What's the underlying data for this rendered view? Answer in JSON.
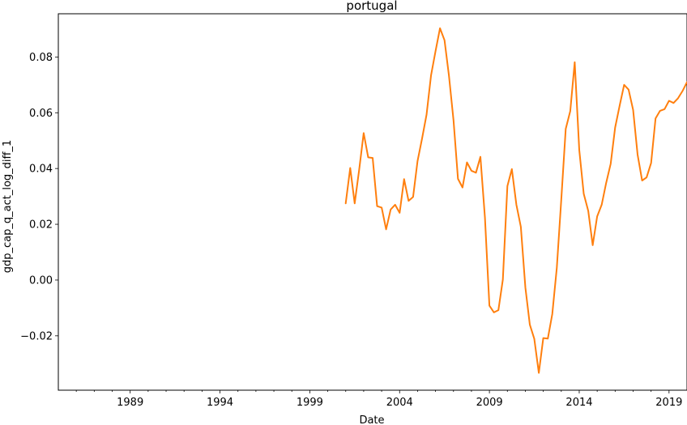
{
  "chart_data": {
    "type": "line",
    "title": "portugal",
    "xlabel": "Date",
    "ylabel": "gdp_cap_q_act_log_diff_1",
    "xlim": [
      1985.0,
      2020.0
    ],
    "ylim": [
      -0.0395,
      0.0955
    ],
    "x_ticks": [
      1989,
      1994,
      1999,
      2004,
      2009,
      2014,
      2019
    ],
    "x_tick_labels": [
      "1989",
      "1994",
      "1999",
      "2004",
      "2009",
      "2014",
      "2019"
    ],
    "y_ticks": [
      -0.02,
      0.0,
      0.02,
      0.04,
      0.06,
      0.08
    ],
    "y_tick_labels": [
      "−0.02",
      "0.00",
      "0.02",
      "0.04",
      "0.06",
      "0.08"
    ],
    "grid": false,
    "series": [
      {
        "color": "#ff7f0e",
        "x": [
          2001.0,
          2001.25,
          2001.5,
          2001.75,
          2002.0,
          2002.25,
          2002.5,
          2002.75,
          2003.0,
          2003.25,
          2003.5,
          2003.75,
          2004.0,
          2004.25,
          2004.5,
          2004.75,
          2005.0,
          2005.25,
          2005.5,
          2005.75,
          2006.0,
          2006.25,
          2006.5,
          2006.75,
          2007.0,
          2007.25,
          2007.5,
          2007.75,
          2008.0,
          2008.25,
          2008.5,
          2008.75,
          2009.0,
          2009.25,
          2009.5,
          2009.75,
          2010.0,
          2010.25,
          2010.5,
          2010.75,
          2011.0,
          2011.25,
          2011.5,
          2011.75,
          2012.0,
          2012.25,
          2012.5,
          2012.75,
          2013.0,
          2013.25,
          2013.5,
          2013.75,
          2014.0,
          2014.25,
          2014.5,
          2014.75,
          2015.0,
          2015.25,
          2015.5,
          2015.75,
          2016.0,
          2016.25,
          2016.5,
          2016.75,
          2017.0,
          2017.25,
          2017.5,
          2017.75,
          2018.0,
          2018.25,
          2018.5,
          2018.75,
          2019.0,
          2019.25,
          2019.5,
          2019.75,
          2020.0
        ],
        "y": [
          0.0275,
          0.0402,
          0.0275,
          0.0397,
          0.0527,
          0.044,
          0.0438,
          0.0265,
          0.026,
          0.0182,
          0.0253,
          0.027,
          0.0241,
          0.0362,
          0.0284,
          0.0298,
          0.0427,
          0.0508,
          0.0593,
          0.0735,
          0.0821,
          0.0903,
          0.086,
          0.0732,
          0.0573,
          0.0363,
          0.0332,
          0.0422,
          0.0392,
          0.0385,
          0.0442,
          0.0223,
          -0.0092,
          -0.0116,
          -0.0108,
          0.0002,
          0.0337,
          0.0398,
          0.027,
          0.0191,
          -0.0027,
          -0.016,
          -0.0211,
          -0.0333,
          -0.0208,
          -0.021,
          -0.0122,
          0.0044,
          0.0288,
          0.0542,
          0.0606,
          0.0781,
          0.0467,
          0.031,
          0.0248,
          0.0125,
          0.0228,
          0.027,
          0.0348,
          0.0417,
          0.0547,
          0.0626,
          0.07,
          0.0683,
          0.061,
          0.045,
          0.0357,
          0.0368,
          0.042,
          0.058,
          0.0607,
          0.0613,
          0.0643,
          0.0635,
          0.0652,
          0.0678,
          0.071
        ]
      }
    ]
  }
}
